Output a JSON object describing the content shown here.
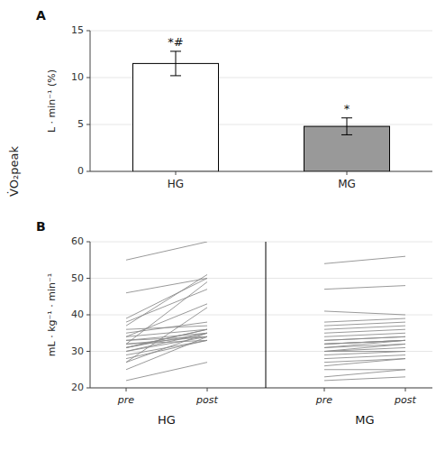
{
  "chart_data": [
    {
      "type": "bar",
      "title": "A",
      "categories": [
        "HG",
        "MG"
      ],
      "values": [
        11.5,
        4.8
      ],
      "errors": [
        1.3,
        0.9
      ],
      "colors": [
        "#ffffff",
        "#999999"
      ],
      "annotations": [
        "*#",
        "*"
      ],
      "ylabel": "L · min⁻¹ (%)",
      "ylim": [
        0,
        15
      ],
      "yticks": [
        0,
        5,
        10,
        15
      ]
    },
    {
      "type": "line",
      "title": "B",
      "categories": [
        "pre",
        "post",
        "pre",
        "post"
      ],
      "series": [
        {
          "name": "HG",
          "pre": [
            22,
            25,
            27,
            27,
            28,
            29,
            30,
            30,
            31,
            31,
            31,
            32,
            32,
            32,
            33,
            33,
            34,
            34,
            35,
            36,
            37,
            38,
            39,
            46,
            55
          ],
          "post": [
            27,
            34,
            35,
            42,
            33,
            33,
            34,
            35,
            35,
            36,
            36,
            33,
            34,
            49,
            34,
            35,
            36,
            43,
            38,
            37,
            51,
            47,
            50,
            50,
            60
          ]
        },
        {
          "name": "MG",
          "pre": [
            22,
            23,
            25,
            26,
            27,
            28,
            29,
            30,
            30,
            30,
            31,
            31,
            32,
            32,
            32,
            33,
            33,
            34,
            35,
            36,
            37,
            38,
            41,
            47,
            54
          ],
          "post": [
            23,
            25,
            25,
            28,
            28,
            29,
            30,
            30,
            31,
            32,
            32,
            33,
            33,
            33,
            33,
            34,
            34,
            35,
            36,
            37,
            38,
            39,
            40,
            48,
            56
          ]
        }
      ],
      "color": "#888888",
      "ylabel": "mL · kg⁻¹ · min⁻¹",
      "ylim": [
        20,
        60
      ],
      "yticks": [
        20,
        30,
        40,
        50,
        60
      ]
    }
  ],
  "ylabel": "V̇O₂peak"
}
